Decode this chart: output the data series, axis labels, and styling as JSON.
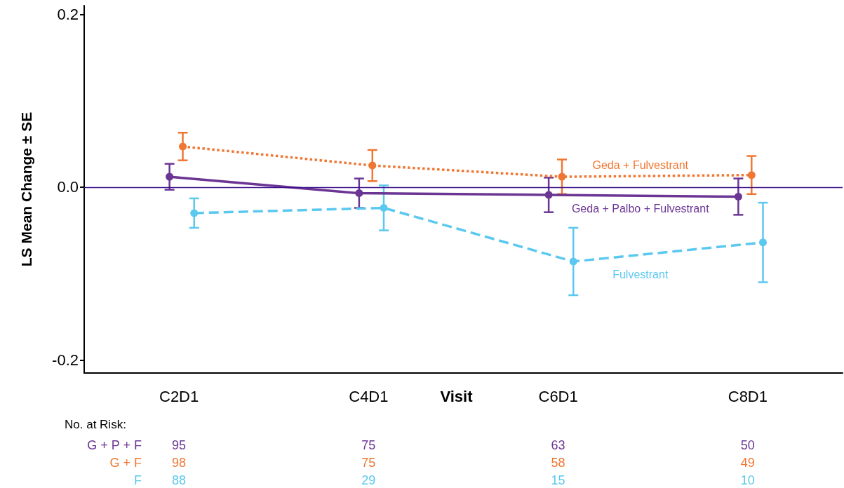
{
  "chart_data": {
    "type": "line",
    "ylabel": "LS Mean Change ± SE",
    "xlabel": "Visit",
    "categories": [
      "C2D1",
      "C4D1",
      "C6D1",
      "C8D1"
    ],
    "series": [
      {
        "name": "Geda + Palbo + Fulvestrant",
        "color": "#6b3594",
        "line_style": "solid",
        "values": [
          0.012,
          -0.007,
          -0.009,
          -0.011
        ],
        "errors": [
          0.015,
          0.017,
          0.02,
          0.021
        ]
      },
      {
        "name": "Geda + Fulvestrant",
        "color": "#ef7733",
        "line_style": "dotted",
        "values": [
          0.047,
          0.025,
          0.012,
          0.014
        ],
        "errors": [
          0.016,
          0.018,
          0.02,
          0.022
        ]
      },
      {
        "name": "Fulvestrant",
        "color": "#5bc8f0",
        "line_style": "dashed",
        "values": [
          -0.03,
          -0.024,
          -0.086,
          -0.064
        ],
        "errors": [
          0.017,
          0.026,
          0.039,
          0.046
        ]
      }
    ],
    "ylim": [
      -0.215,
      0.21
    ],
    "yticks": [
      {
        "value": -0.2,
        "label": "-0.2"
      },
      {
        "value": 0,
        "label": "0.0"
      },
      {
        "value": 0.2,
        "label": "0.2"
      }
    ],
    "ref_lines": [
      {
        "axis": "y",
        "value": 0,
        "color": "#3a0f8a"
      }
    ],
    "marker": "circle",
    "grid": false,
    "legend": false,
    "annotations": [
      "No. at Risk:",
      "G + P + F",
      "95",
      "75",
      "63",
      "50",
      "G + F",
      "98",
      "75",
      "58",
      "49",
      "F",
      "88",
      "29",
      "15",
      "10"
    ]
  }
}
